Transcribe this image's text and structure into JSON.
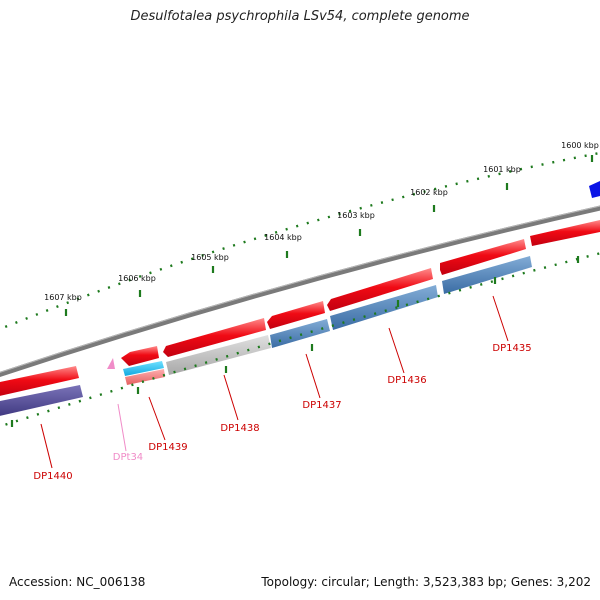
{
  "title": "Desulfotalea psychrophila LSv54, complete genome",
  "footer": {
    "accession": "Accession: NC_006138",
    "stats": "Topology: circular; Length: 3,523,383 bp; Genes: 3,202"
  },
  "scale_labels": [
    "1600 kbp",
    "1601 kbp",
    "1602 kbp",
    "1603 kbp",
    "1604 kbp",
    "1605 kbp",
    "1606 kbp",
    "1607 kbp"
  ],
  "gene_labels": [
    "DP1435",
    "DP1436",
    "DP1437",
    "DP1438",
    "DP1439",
    "DPt34",
    "DP1440"
  ],
  "colors": {
    "cds_forward": "#e8001c",
    "cds_reverse": "#3a6fa8",
    "trna": "#f08cc8",
    "backbone": "#777777",
    "tick": "#1e7a1e",
    "label_red": "#cc0000",
    "label_pink": "#f08cc8"
  }
}
